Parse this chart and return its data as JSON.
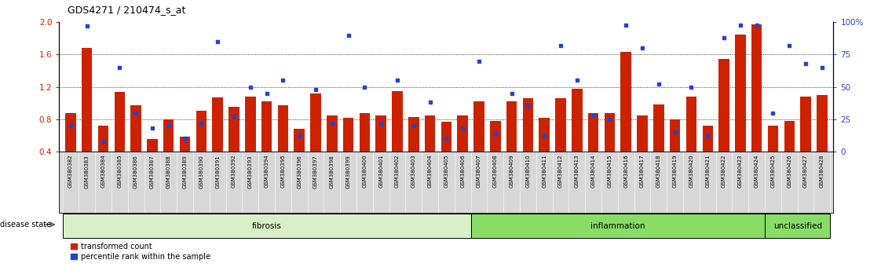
{
  "title": "GDS4271 / 210474_s_at",
  "samples": [
    "GSM380382",
    "GSM380383",
    "GSM380384",
    "GSM380385",
    "GSM380386",
    "GSM380387",
    "GSM380388",
    "GSM380389",
    "GSM380390",
    "GSM380391",
    "GSM380392",
    "GSM380393",
    "GSM380394",
    "GSM380395",
    "GSM380396",
    "GSM380397",
    "GSM380398",
    "GSM380399",
    "GSM380400",
    "GSM380401",
    "GSM380402",
    "GSM380403",
    "GSM380404",
    "GSM380405",
    "GSM380406",
    "GSM380407",
    "GSM380408",
    "GSM380409",
    "GSM380410",
    "GSM380411",
    "GSM380412",
    "GSM380413",
    "GSM380414",
    "GSM380415",
    "GSM380416",
    "GSM380417",
    "GSM380418",
    "GSM380419",
    "GSM380420",
    "GSM380421",
    "GSM380422",
    "GSM380423",
    "GSM380424",
    "GSM380425",
    "GSM380426",
    "GSM380427",
    "GSM380428"
  ],
  "red_values": [
    0.88,
    1.68,
    0.72,
    1.14,
    0.97,
    0.55,
    0.8,
    0.58,
    0.9,
    1.07,
    0.95,
    1.08,
    1.02,
    0.97,
    0.68,
    1.12,
    0.85,
    0.82,
    0.88,
    0.85,
    1.15,
    0.83,
    0.85,
    0.77,
    0.85,
    1.02,
    0.78,
    1.02,
    1.06,
    0.82,
    1.06,
    1.18,
    0.88,
    0.88,
    1.63,
    0.85,
    0.98,
    0.8,
    1.08,
    0.72,
    1.55,
    1.85,
    1.97,
    0.72,
    0.78,
    1.08,
    1.1
  ],
  "blue_values": [
    20,
    97,
    8,
    65,
    30,
    18,
    20,
    10,
    22,
    85,
    27,
    50,
    45,
    55,
    12,
    48,
    22,
    90,
    50,
    22,
    55,
    20,
    38,
    10,
    18,
    70,
    14,
    45,
    35,
    12,
    82,
    55,
    28,
    25,
    98,
    80,
    52,
    15,
    50,
    12,
    88,
    98,
    98,
    30,
    82,
    68,
    65
  ],
  "groups": [
    {
      "label": "fibrosis",
      "start": 0,
      "end": 25,
      "color": "#d8f0c8"
    },
    {
      "label": "inflammation",
      "start": 25,
      "end": 43,
      "color": "#88dd66"
    },
    {
      "label": "unclassified",
      "start": 43,
      "end": 47,
      "color": "#88dd66"
    }
  ],
  "ylim_left": [
    0.4,
    2.0
  ],
  "ylim_right": [
    0,
    100
  ],
  "yticks_left": [
    0.4,
    0.8,
    1.2,
    1.6,
    2.0
  ],
  "yticks_right": [
    0,
    25,
    50,
    75,
    100
  ],
  "bar_color": "#cc2200",
  "dot_color": "#2244cc",
  "disease_state_label": "disease state"
}
